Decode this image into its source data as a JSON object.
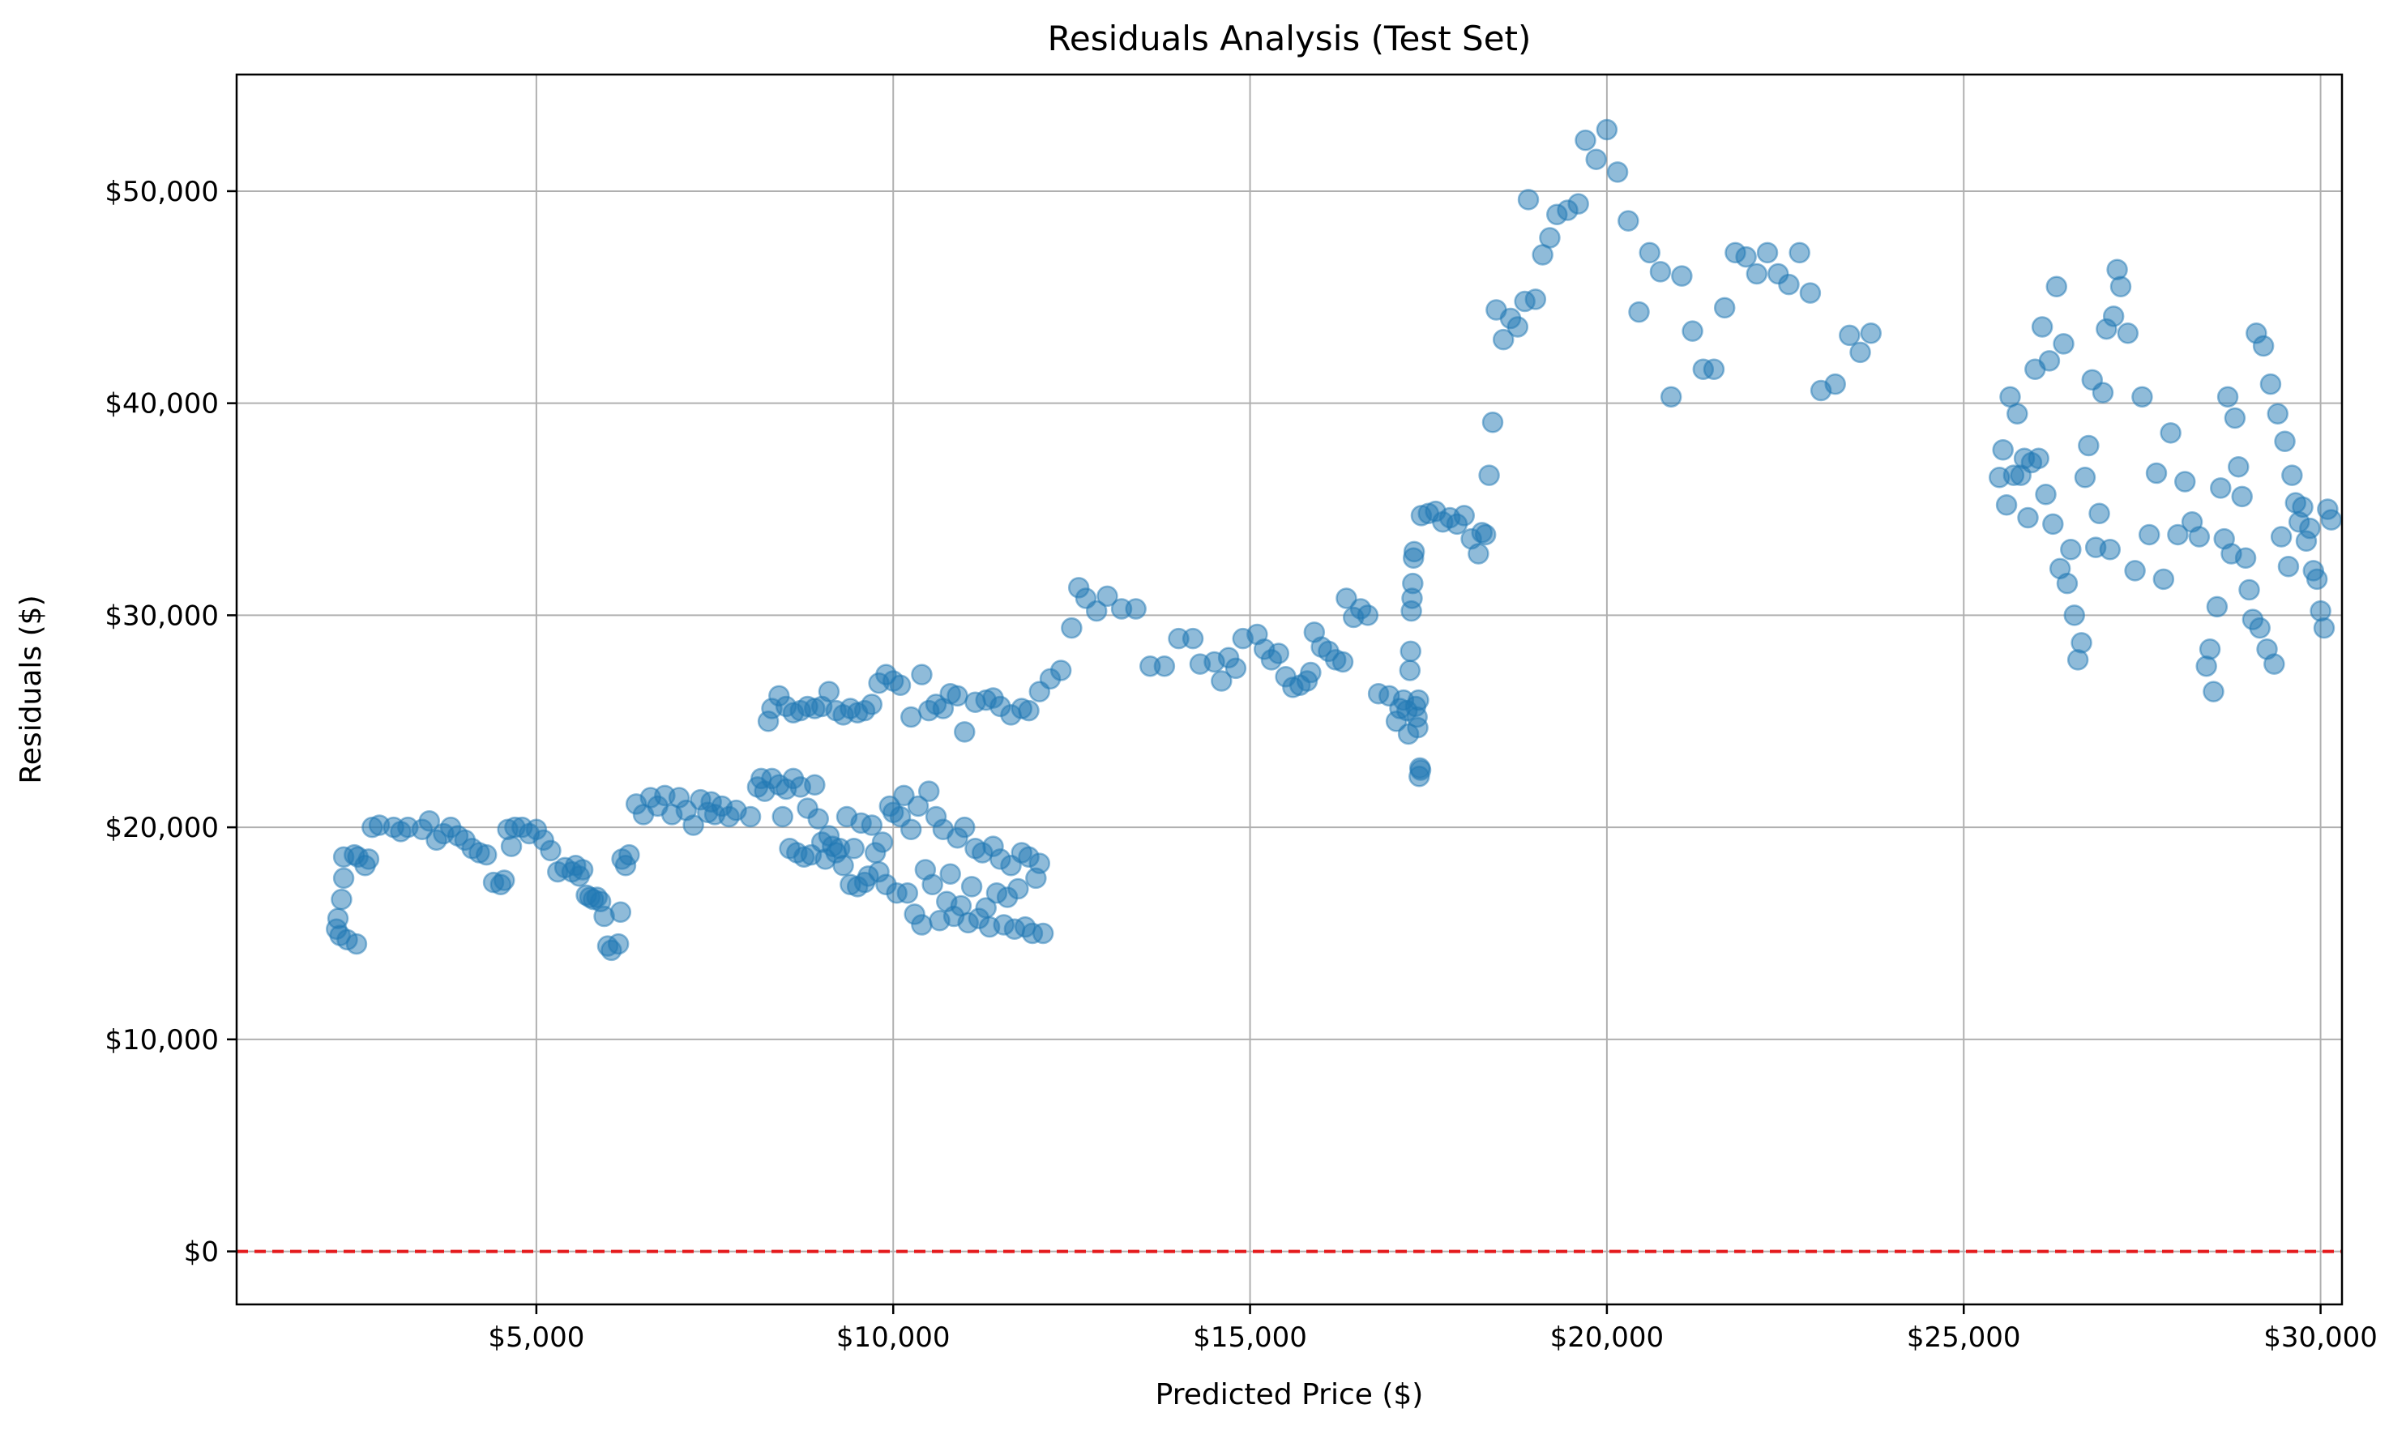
{
  "chart_data": {
    "type": "scatter",
    "title": "Residuals Analysis (Test Set)",
    "xlabel": "Predicted Price ($)",
    "ylabel": "Residuals ($)",
    "xlim": [
      800,
      30300
    ],
    "ylim": [
      -2500,
      55500
    ],
    "x_ticks": [
      {
        "value": 5000,
        "label": "$5,000"
      },
      {
        "value": 10000,
        "label": "$10,000"
      },
      {
        "value": 15000,
        "label": "$15,000"
      },
      {
        "value": 20000,
        "label": "$20,000"
      },
      {
        "value": 25000,
        "label": "$25,000"
      },
      {
        "value": 30000,
        "label": "$30,000"
      }
    ],
    "y_ticks": [
      {
        "value": 0,
        "label": "$0"
      },
      {
        "value": 10000,
        "label": "$10,000"
      },
      {
        "value": 20000,
        "label": "$20,000"
      },
      {
        "value": 30000,
        "label": "$30,000"
      },
      {
        "value": 40000,
        "label": "$40,000"
      },
      {
        "value": 50000,
        "label": "$50,000"
      }
    ],
    "grid": true,
    "reference_line": {
      "y": 0,
      "color": "#e41a1c",
      "style": "dashed"
    },
    "marker_color": "#1f77b4",
    "marker_alpha": 0.5,
    "points": [
      [
        2200,
        15200
      ],
      [
        2220,
        15700
      ],
      [
        2250,
        14900
      ],
      [
        2270,
        16600
      ],
      [
        2300,
        17600
      ],
      [
        2300,
        18600
      ],
      [
        2350,
        14700
      ],
      [
        2450,
        18700
      ],
      [
        2480,
        14500
      ],
      [
        2500,
        18600
      ],
      [
        2600,
        18200
      ],
      [
        2650,
        18500
      ],
      [
        2700,
        20000
      ],
      [
        2800,
        20100
      ],
      [
        3000,
        20000
      ],
      [
        3100,
        19800
      ],
      [
        3200,
        20000
      ],
      [
        3400,
        19900
      ],
      [
        3500,
        20300
      ],
      [
        3600,
        19400
      ],
      [
        3700,
        19700
      ],
      [
        3800,
        20000
      ],
      [
        3900,
        19600
      ],
      [
        4000,
        19400
      ],
      [
        4100,
        19000
      ],
      [
        4200,
        18800
      ],
      [
        4300,
        18700
      ],
      [
        4400,
        17400
      ],
      [
        4500,
        17300
      ],
      [
        4550,
        17500
      ],
      [
        4600,
        19900
      ],
      [
        4650,
        19100
      ],
      [
        4700,
        20000
      ],
      [
        4800,
        20000
      ],
      [
        4900,
        19700
      ],
      [
        5000,
        19900
      ],
      [
        5100,
        19400
      ],
      [
        5200,
        18900
      ],
      [
        5300,
        17900
      ],
      [
        5400,
        18100
      ],
      [
        5500,
        17900
      ],
      [
        5550,
        18200
      ],
      [
        5600,
        17700
      ],
      [
        5650,
        18000
      ],
      [
        5700,
        16800
      ],
      [
        5750,
        16700
      ],
      [
        5800,
        16600
      ],
      [
        5850,
        16700
      ],
      [
        5900,
        16500
      ],
      [
        5950,
        15800
      ],
      [
        6000,
        14400
      ],
      [
        6050,
        14200
      ],
      [
        6150,
        14500
      ],
      [
        6180,
        16000
      ],
      [
        6200,
        18500
      ],
      [
        6250,
        18200
      ],
      [
        6300,
        18700
      ],
      [
        6400,
        21100
      ],
      [
        6500,
        20600
      ],
      [
        6600,
        21400
      ],
      [
        6700,
        21000
      ],
      [
        6800,
        21500
      ],
      [
        6900,
        20600
      ],
      [
        7000,
        21400
      ],
      [
        7100,
        20800
      ],
      [
        7200,
        20100
      ],
      [
        7300,
        21300
      ],
      [
        7400,
        20700
      ],
      [
        7450,
        21200
      ],
      [
        7500,
        20600
      ],
      [
        7600,
        21000
      ],
      [
        7700,
        20500
      ],
      [
        7800,
        20800
      ],
      [
        8000,
        20500
      ],
      [
        8100,
        21900
      ],
      [
        8150,
        22300
      ],
      [
        8200,
        21700
      ],
      [
        8300,
        22300
      ],
      [
        8400,
        22000
      ],
      [
        8450,
        20500
      ],
      [
        8500,
        21800
      ],
      [
        8550,
        19000
      ],
      [
        8600,
        22300
      ],
      [
        8650,
        18800
      ],
      [
        8700,
        21900
      ],
      [
        8750,
        18600
      ],
      [
        8800,
        20900
      ],
      [
        8850,
        18700
      ],
      [
        8900,
        22000
      ],
      [
        8950,
        20400
      ],
      [
        9000,
        19300
      ],
      [
        9050,
        18500
      ],
      [
        9100,
        19600
      ],
      [
        9150,
        19100
      ],
      [
        9200,
        18800
      ],
      [
        9250,
        19000
      ],
      [
        9300,
        18200
      ],
      [
        9350,
        20500
      ],
      [
        9400,
        17300
      ],
      [
        9450,
        19000
      ],
      [
        9500,
        17200
      ],
      [
        9550,
        20200
      ],
      [
        9600,
        17400
      ],
      [
        9650,
        17700
      ],
      [
        9700,
        20100
      ],
      [
        9750,
        18800
      ],
      [
        9800,
        17900
      ],
      [
        9850,
        19300
      ],
      [
        9900,
        17300
      ],
      [
        9950,
        21000
      ],
      [
        10000,
        20700
      ],
      [
        10050,
        16900
      ],
      [
        10100,
        20500
      ],
      [
        10150,
        21500
      ],
      [
        10200,
        16900
      ],
      [
        10250,
        19900
      ],
      [
        10300,
        15900
      ],
      [
        10350,
        21000
      ],
      [
        10400,
        15400
      ],
      [
        10450,
        18000
      ],
      [
        10500,
        21700
      ],
      [
        10550,
        17300
      ],
      [
        10600,
        20500
      ],
      [
        10650,
        15600
      ],
      [
        10700,
        19900
      ],
      [
        10750,
        16500
      ],
      [
        10800,
        17800
      ],
      [
        10850,
        15800
      ],
      [
        10900,
        19500
      ],
      [
        10950,
        16300
      ],
      [
        11000,
        20000
      ],
      [
        11050,
        15500
      ],
      [
        11100,
        17200
      ],
      [
        11150,
        19000
      ],
      [
        11200,
        15700
      ],
      [
        11250,
        18800
      ],
      [
        11300,
        16200
      ],
      [
        11350,
        15300
      ],
      [
        11400,
        19100
      ],
      [
        11450,
        16900
      ],
      [
        11500,
        18500
      ],
      [
        11550,
        15400
      ],
      [
        11600,
        16700
      ],
      [
        11650,
        18200
      ],
      [
        11700,
        15200
      ],
      [
        11750,
        17100
      ],
      [
        11800,
        18800
      ],
      [
        11850,
        15300
      ],
      [
        11900,
        18600
      ],
      [
        11950,
        15000
      ],
      [
        12000,
        17600
      ],
      [
        12050,
        18300
      ],
      [
        12100,
        15000
      ],
      [
        8250,
        25000
      ],
      [
        8300,
        25600
      ],
      [
        8400,
        26200
      ],
      [
        8500,
        25700
      ],
      [
        8600,
        25400
      ],
      [
        8700,
        25500
      ],
      [
        8800,
        25700
      ],
      [
        8900,
        25600
      ],
      [
        9000,
        25700
      ],
      [
        9100,
        26400
      ],
      [
        9200,
        25500
      ],
      [
        9300,
        25300
      ],
      [
        9400,
        25600
      ],
      [
        9500,
        25400
      ],
      [
        9600,
        25500
      ],
      [
        9700,
        25800
      ],
      [
        9800,
        26800
      ],
      [
        9900,
        27200
      ],
      [
        10000,
        26900
      ],
      [
        10100,
        26700
      ],
      [
        10250,
        25200
      ],
      [
        10400,
        27200
      ],
      [
        10500,
        25500
      ],
      [
        10600,
        25800
      ],
      [
        10700,
        25600
      ],
      [
        10800,
        26300
      ],
      [
        10900,
        26200
      ],
      [
        11000,
        24500
      ],
      [
        11150,
        25900
      ],
      [
        11300,
        26000
      ],
      [
        11400,
        26100
      ],
      [
        11500,
        25700
      ],
      [
        11650,
        25300
      ],
      [
        11800,
        25600
      ],
      [
        11900,
        25500
      ],
      [
        12050,
        26400
      ],
      [
        12200,
        27000
      ],
      [
        12350,
        27400
      ],
      [
        12500,
        29400
      ],
      [
        12600,
        31300
      ],
      [
        12700,
        30800
      ],
      [
        12850,
        30200
      ],
      [
        13000,
        30900
      ],
      [
        13200,
        30300
      ],
      [
        13400,
        30300
      ],
      [
        13600,
        27600
      ],
      [
        13800,
        27600
      ],
      [
        14000,
        28900
      ],
      [
        14200,
        28900
      ],
      [
        14300,
        27700
      ],
      [
        14500,
        27800
      ],
      [
        14600,
        26900
      ],
      [
        14700,
        28000
      ],
      [
        14800,
        27500
      ],
      [
        14900,
        28900
      ],
      [
        15100,
        29100
      ],
      [
        15200,
        28400
      ],
      [
        15300,
        27900
      ],
      [
        15400,
        28200
      ],
      [
        15500,
        27100
      ],
      [
        15600,
        26600
      ],
      [
        15700,
        26700
      ],
      [
        15800,
        26900
      ],
      [
        15850,
        27300
      ],
      [
        15900,
        29200
      ],
      [
        16000,
        28500
      ],
      [
        16100,
        28300
      ],
      [
        16200,
        27900
      ],
      [
        16300,
        27800
      ],
      [
        16350,
        30800
      ],
      [
        16450,
        29900
      ],
      [
        16550,
        30300
      ],
      [
        16650,
        30000
      ],
      [
        16800,
        26300
      ],
      [
        16950,
        26200
      ],
      [
        17050,
        25000
      ],
      [
        17100,
        25600
      ],
      [
        17150,
        26000
      ],
      [
        17200,
        25500
      ],
      [
        17220,
        24400
      ],
      [
        17240,
        27400
      ],
      [
        17250,
        28300
      ],
      [
        17260,
        30200
      ],
      [
        17270,
        30800
      ],
      [
        17280,
        31500
      ],
      [
        17290,
        32700
      ],
      [
        17300,
        33000
      ],
      [
        17320,
        25700
      ],
      [
        17340,
        25200
      ],
      [
        17350,
        24700
      ],
      [
        17360,
        26000
      ],
      [
        17370,
        22400
      ],
      [
        17380,
        22800
      ],
      [
        17390,
        22700
      ],
      [
        17400,
        34700
      ],
      [
        17500,
        34800
      ],
      [
        17600,
        34900
      ],
      [
        17700,
        34400
      ],
      [
        17800,
        34600
      ],
      [
        17900,
        34300
      ],
      [
        18000,
        34700
      ],
      [
        18100,
        33600
      ],
      [
        18200,
        32900
      ],
      [
        18250,
        33900
      ],
      [
        18300,
        33800
      ],
      [
        18350,
        36600
      ],
      [
        18400,
        39100
      ],
      [
        18450,
        44400
      ],
      [
        18550,
        43000
      ],
      [
        18650,
        44000
      ],
      [
        18750,
        43600
      ],
      [
        18850,
        44800
      ],
      [
        18900,
        49600
      ],
      [
        19000,
        44900
      ],
      [
        19100,
        47000
      ],
      [
        19200,
        47800
      ],
      [
        19300,
        48900
      ],
      [
        19450,
        49100
      ],
      [
        19600,
        49400
      ],
      [
        19700,
        52400
      ],
      [
        19850,
        51500
      ],
      [
        20000,
        52900
      ],
      [
        20150,
        50900
      ],
      [
        20300,
        48600
      ],
      [
        20450,
        44300
      ],
      [
        20600,
        47100
      ],
      [
        20750,
        46200
      ],
      [
        20900,
        40300
      ],
      [
        21050,
        46000
      ],
      [
        21200,
        43400
      ],
      [
        21350,
        41600
      ],
      [
        21500,
        41600
      ],
      [
        21650,
        44500
      ],
      [
        21800,
        47100
      ],
      [
        21950,
        46900
      ],
      [
        22100,
        46100
      ],
      [
        22250,
        47100
      ],
      [
        22400,
        46100
      ],
      [
        22550,
        45600
      ],
      [
        22700,
        47100
      ],
      [
        22850,
        45200
      ],
      [
        23000,
        40600
      ],
      [
        23200,
        40900
      ],
      [
        23400,
        43200
      ],
      [
        23550,
        42400
      ],
      [
        23700,
        43300
      ],
      [
        25500,
        36500
      ],
      [
        25550,
        37800
      ],
      [
        25600,
        35200
      ],
      [
        25650,
        40300
      ],
      [
        25700,
        36600
      ],
      [
        25750,
        39500
      ],
      [
        25800,
        36600
      ],
      [
        25850,
        37400
      ],
      [
        25900,
        34600
      ],
      [
        25950,
        37200
      ],
      [
        26000,
        41600
      ],
      [
        26050,
        37400
      ],
      [
        26100,
        43600
      ],
      [
        26150,
        35700
      ],
      [
        26200,
        42000
      ],
      [
        26250,
        34300
      ],
      [
        26300,
        45500
      ],
      [
        26350,
        32200
      ],
      [
        26400,
        42800
      ],
      [
        26450,
        31500
      ],
      [
        26500,
        33100
      ],
      [
        26550,
        30000
      ],
      [
        26600,
        27900
      ],
      [
        26650,
        28700
      ],
      [
        26700,
        36500
      ],
      [
        26750,
        38000
      ],
      [
        26800,
        41100
      ],
      [
        26850,
        33200
      ],
      [
        26900,
        34800
      ],
      [
        26950,
        40500
      ],
      [
        27000,
        43500
      ],
      [
        27050,
        33100
      ],
      [
        27100,
        44100
      ],
      [
        27150,
        46300
      ],
      [
        27200,
        45500
      ],
      [
        27300,
        43300
      ],
      [
        27400,
        32100
      ],
      [
        27500,
        40300
      ],
      [
        27600,
        33800
      ],
      [
        27700,
        36700
      ],
      [
        27800,
        31700
      ],
      [
        27900,
        38600
      ],
      [
        28000,
        33800
      ],
      [
        28100,
        36300
      ],
      [
        28200,
        34400
      ],
      [
        28300,
        33700
      ],
      [
        28400,
        27600
      ],
      [
        28450,
        28400
      ],
      [
        28500,
        26400
      ],
      [
        28550,
        30400
      ],
      [
        28600,
        36000
      ],
      [
        28650,
        33600
      ],
      [
        28700,
        40300
      ],
      [
        28750,
        32900
      ],
      [
        28800,
        39300
      ],
      [
        28850,
        37000
      ],
      [
        28900,
        35600
      ],
      [
        28950,
        32700
      ],
      [
        29000,
        31200
      ],
      [
        29050,
        29800
      ],
      [
        29100,
        43300
      ],
      [
        29150,
        29400
      ],
      [
        29200,
        42700
      ],
      [
        29250,
        28400
      ],
      [
        29300,
        40900
      ],
      [
        29350,
        27700
      ],
      [
        29400,
        39500
      ],
      [
        29450,
        33700
      ],
      [
        29500,
        38200
      ],
      [
        29550,
        32300
      ],
      [
        29600,
        36600
      ],
      [
        29650,
        35300
      ],
      [
        29700,
        34400
      ],
      [
        29750,
        35100
      ],
      [
        29800,
        33500
      ],
      [
        29850,
        34100
      ],
      [
        29900,
        32100
      ],
      [
        29950,
        31700
      ],
      [
        30000,
        30200
      ],
      [
        30050,
        29400
      ],
      [
        30100,
        35000
      ],
      [
        30150,
        34500
      ]
    ]
  }
}
